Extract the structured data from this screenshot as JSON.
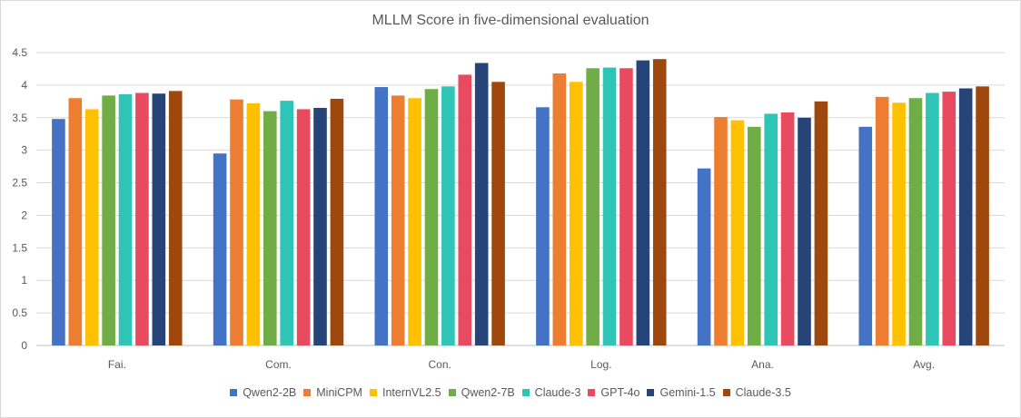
{
  "chart_data": {
    "type": "bar",
    "title": "MLLM Score in five-dimensional evaluation",
    "xlabel": "",
    "ylabel": "",
    "ylim": [
      0,
      4.5
    ],
    "yticks": [
      "0",
      "0.5",
      "1",
      "1.5",
      "2",
      "2.5",
      "3",
      "3.5",
      "4",
      "4.5"
    ],
    "grid": true,
    "legend_position": "bottom",
    "categories": [
      "Fai.",
      "Com.",
      "Con.",
      "Log.",
      "Ana.",
      "Avg."
    ],
    "series": [
      {
        "name": "Qwen2-2B",
        "color": "#4472c4",
        "values": [
          3.48,
          2.95,
          3.97,
          3.66,
          2.72,
          3.36
        ]
      },
      {
        "name": "MiniCPM",
        "color": "#ed7d31",
        "values": [
          3.8,
          3.78,
          3.84,
          4.18,
          3.51,
          3.82
        ]
      },
      {
        "name": "InternVL2.5",
        "color": "#ffc000",
        "values": [
          3.63,
          3.72,
          3.8,
          4.05,
          3.46,
          3.73
        ]
      },
      {
        "name": "Qwen2-7B",
        "color": "#70ad47",
        "values": [
          3.84,
          3.6,
          3.94,
          4.26,
          3.36,
          3.8
        ]
      },
      {
        "name": "Claude-3",
        "color": "#2ec4b6",
        "values": [
          3.86,
          3.76,
          3.98,
          4.27,
          3.56,
          3.88
        ]
      },
      {
        "name": "GPT-4o",
        "color": "#e84a5f",
        "values": [
          3.88,
          3.63,
          4.16,
          4.26,
          3.58,
          3.9
        ]
      },
      {
        "name": "Gemini-1.5",
        "color": "#264478",
        "values": [
          3.87,
          3.65,
          4.34,
          4.38,
          3.5,
          3.95
        ]
      },
      {
        "name": "Claude-3.5",
        "color": "#9e480e",
        "values": [
          3.91,
          3.79,
          4.05,
          4.4,
          3.75,
          3.98
        ]
      }
    ]
  }
}
